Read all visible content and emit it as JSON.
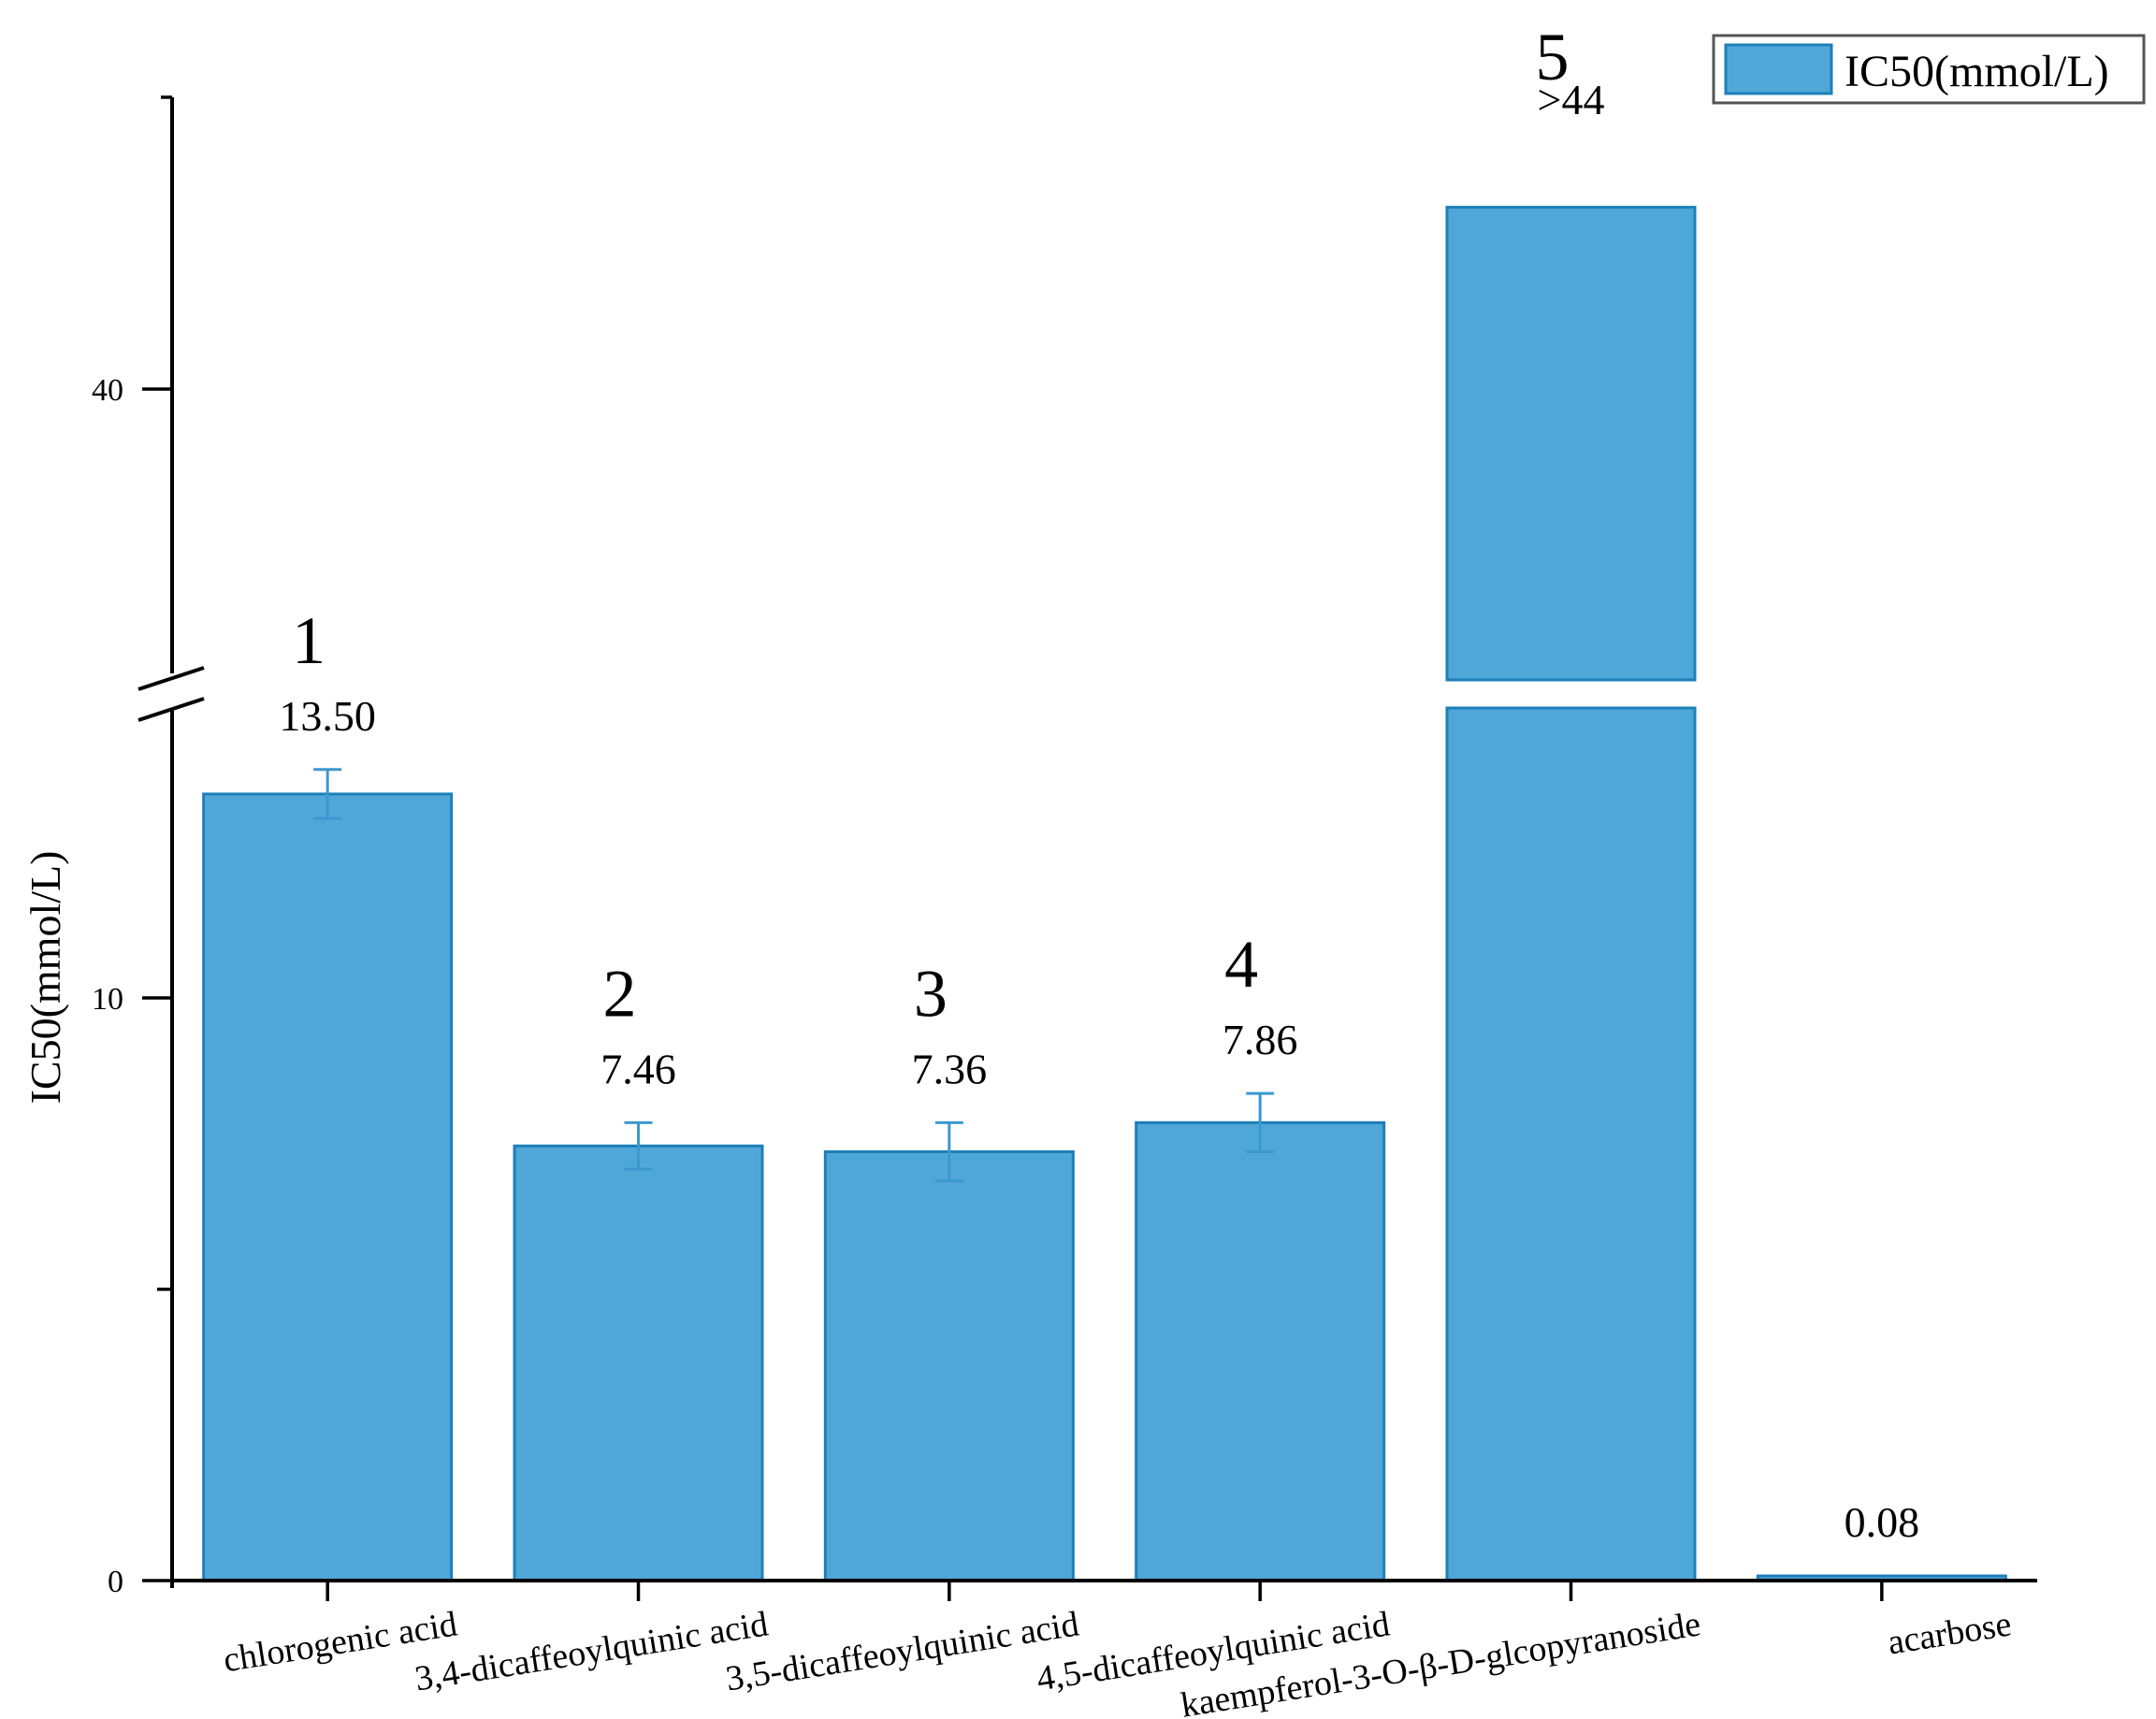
{
  "chart_data": {
    "type": "bar",
    "ylabel": "IC50(mmol/L)",
    "legend": {
      "label": "IC50(mmol/L)",
      "placement": "top-right"
    },
    "y_axis": {
      "break": true,
      "lower_range": [
        0,
        15
      ],
      "upper_range": [
        30,
        44
      ],
      "tick_labels": [
        "0",
        "10",
        "40"
      ]
    },
    "colors": {
      "bar": "#4fa7d8",
      "bar_edge": "#1e7fb8",
      "error_bar": "#3b98cf",
      "axis": "#000000"
    },
    "categories": [
      "chlorogenic acid",
      "3,4-dicaffeoylquinic acid",
      "3,5-dicaffeoylquinic acid",
      "4,5-dicaffeoylquinic acid",
      "kaempferol-3-O-β-D-glcopyranoside",
      "acarbose"
    ],
    "values": [
      13.5,
      7.46,
      7.36,
      7.86,
      44,
      0.08
    ],
    "errors": [
      0.42,
      0.4,
      0.5,
      0.5,
      null,
      null
    ],
    "value_labels": [
      "13.50",
      "7.46",
      "7.36",
      "7.86",
      ">44",
      "0.08"
    ],
    "compound_numbers": [
      "1",
      "2",
      "3",
      "4",
      "5",
      ""
    ]
  }
}
